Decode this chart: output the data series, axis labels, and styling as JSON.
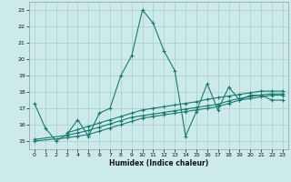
{
  "xlabel": "Humidex (Indice chaleur)",
  "background_color": "#cceaea",
  "grid_color": "#aacccc",
  "line_color": "#1a7a6e",
  "xlim": [
    -0.5,
    23.5
  ],
  "ylim": [
    14.5,
    23.5
  ],
  "yticks": [
    15,
    16,
    17,
    18,
    19,
    20,
    21,
    22,
    23
  ],
  "xticks": [
    0,
    1,
    2,
    3,
    4,
    5,
    6,
    7,
    8,
    9,
    10,
    11,
    12,
    13,
    14,
    15,
    16,
    17,
    18,
    19,
    20,
    21,
    22,
    23
  ],
  "line1_x": [
    0,
    1,
    2,
    3,
    4,
    5,
    6,
    7,
    8,
    9,
    10,
    11,
    12,
    13,
    14,
    15,
    16,
    17,
    18,
    19,
    20,
    21,
    22,
    23
  ],
  "line1_y": [
    17.3,
    15.8,
    15.0,
    15.4,
    16.3,
    15.3,
    16.7,
    17.0,
    19.0,
    20.2,
    23.0,
    22.2,
    20.5,
    19.3,
    15.3,
    16.8,
    18.5,
    16.9,
    18.3,
    17.5,
    17.8,
    17.8,
    17.5,
    17.5
  ],
  "line2_x": [
    0,
    3,
    4,
    5,
    6,
    7,
    8,
    9,
    10,
    11,
    12,
    13,
    14,
    15,
    16,
    17,
    18,
    19,
    20,
    21,
    22,
    23
  ],
  "line2_y": [
    15.0,
    15.2,
    15.3,
    15.4,
    15.6,
    15.8,
    16.0,
    16.2,
    16.4,
    16.5,
    16.6,
    16.7,
    16.8,
    16.9,
    17.0,
    17.1,
    17.3,
    17.5,
    17.6,
    17.7,
    17.8,
    17.8
  ],
  "line3_x": [
    0,
    3,
    4,
    5,
    6,
    7,
    8,
    9,
    10,
    11,
    12,
    13,
    14,
    15,
    16,
    17,
    18,
    19,
    20,
    21,
    22,
    23
  ],
  "line3_y": [
    15.1,
    15.35,
    15.5,
    15.65,
    15.85,
    16.05,
    16.25,
    16.45,
    16.55,
    16.65,
    16.75,
    16.85,
    16.95,
    17.05,
    17.15,
    17.25,
    17.45,
    17.6,
    17.72,
    17.82,
    17.88,
    17.88
  ],
  "line4_x": [
    3,
    4,
    5,
    6,
    7,
    8,
    9,
    10,
    11,
    12,
    13,
    14,
    15,
    16,
    17,
    18,
    19,
    20,
    21,
    22,
    23
  ],
  "line4_y": [
    15.5,
    15.7,
    15.9,
    16.1,
    16.3,
    16.5,
    16.7,
    16.9,
    17.0,
    17.1,
    17.2,
    17.3,
    17.4,
    17.55,
    17.65,
    17.75,
    17.85,
    17.95,
    18.05,
    18.05,
    18.05
  ]
}
